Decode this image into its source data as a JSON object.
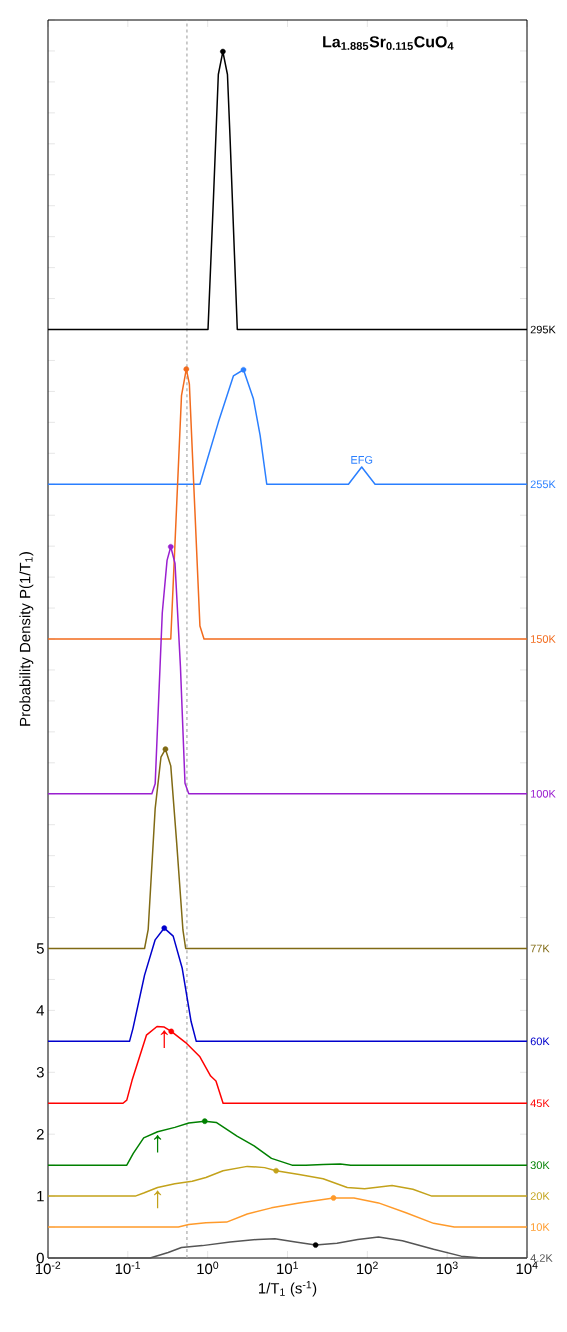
{
  "chart_data": {
    "type": "line",
    "title": "La$_{1.885}$Sr$_{0.115}$CuO$_{4}$",
    "xlabel": "1/T$_{1}$ (s$^{-1}$)",
    "ylabel": "Probability Density P(1/T$_{1}$)",
    "log": "x",
    "xlim": [
      0.01,
      10000
    ],
    "xticks": [
      {
        "value": 0.01,
        "label": "10$^{-2}$"
      },
      {
        "value": 0.1,
        "label": "10$^{-1}$"
      },
      {
        "value": 1,
        "label": "10$^{0}$"
      },
      {
        "value": 10,
        "label": "10$^{1}$"
      },
      {
        "value": 100,
        "label": "10$^{2}$"
      },
      {
        "value": 1000,
        "label": "10$^{3}$"
      },
      {
        "value": 10000,
        "label": "10$^{4}$"
      }
    ],
    "ylim": [
      0,
      20
    ],
    "yticks": [
      0,
      {
        "value": 0.5,
        "label": null
      },
      1,
      {
        "value": 1.5,
        "label": null
      },
      2,
      {
        "value": 2.5,
        "label": null
      },
      3,
      {
        "value": 3.5,
        "label": null
      },
      4,
      {
        "value": 4.5,
        "label": null
      },
      5,
      {
        "value": 5.5,
        "label": null
      },
      {
        "value": 6,
        "label": null
      },
      {
        "value": 6.5,
        "label": null
      },
      {
        "value": 7,
        "label": null
      },
      {
        "value": 7.5,
        "label": null
      },
      {
        "value": 8,
        "label": null
      },
      {
        "value": 8.5,
        "label": null
      },
      {
        "value": 9,
        "label": null
      },
      {
        "value": 9.5,
        "label": null
      },
      {
        "value": 10,
        "label": null
      },
      {
        "value": 10.5,
        "label": null
      },
      {
        "value": 11,
        "label": null
      },
      {
        "value": 11.5,
        "label": null
      },
      {
        "value": 12,
        "label": null
      },
      {
        "value": 12.5,
        "label": null
      },
      {
        "value": 13,
        "label": null
      },
      {
        "value": 13.5,
        "label": null
      },
      {
        "value": 14,
        "label": null
      },
      {
        "value": 14.5,
        "label": null
      },
      {
        "value": 15,
        "label": null
      },
      {
        "value": 15.5,
        "label": null
      },
      {
        "value": 16,
        "label": null
      },
      {
        "value": 16.5,
        "label": null
      },
      {
        "value": 17,
        "label": null
      },
      {
        "value": 17.5,
        "label": null
      },
      {
        "value": 18,
        "label": null
      },
      {
        "value": 18.5,
        "label": null
      },
      {
        "value": 19,
        "label": null
      },
      {
        "value": 19.5,
        "label": null
      },
      {
        "value": 20,
        "label": null
      }
    ],
    "ref_lines": [
      {
        "axis": "x",
        "value": 0.55,
        "color": "#aaaaaa",
        "line_style": "dashed"
      }
    ],
    "annotations": [
      {
        "text": "EFG",
        "x": 85,
        "y": 12.78
      },
      {
        "text": "↑",
        "x": 0.286,
        "y": 3.73
      },
      {
        "text": "↑",
        "x": 0.236,
        "y": 2.04
      },
      {
        "text": "↑",
        "x": 0.236,
        "y": 1.14
      }
    ],
    "series": [
      {
        "name": "295K",
        "color": "#000000",
        "x": [
          0.01,
          1.01,
          1.18,
          1.36,
          1.55,
          1.77,
          1.91,
          2.35,
          10000
        ],
        "values": [
          15,
          15,
          17.1,
          19.12,
          19.49,
          19.12,
          18.08,
          15,
          15
        ]
      },
      {
        "name": "255K",
        "color": "#2a7fff",
        "x": [
          0.01,
          0.8,
          1.36,
          2.1,
          2.81,
          3.74,
          4.54,
          5.5,
          58,
          85,
          125,
          10000
        ],
        "values": [
          12.5,
          12.5,
          13.5,
          14.25,
          14.35,
          13.88,
          13.29,
          12.5,
          12.5,
          12.78,
          12.5,
          12.5
        ]
      },
      {
        "name": "150K",
        "color": "#f26b1d",
        "x": [
          0.01,
          0.345,
          0.47,
          0.54,
          0.59,
          0.8,
          0.9,
          10000
        ],
        "values": [
          10,
          10,
          13.93,
          14.36,
          14.12,
          10.21,
          10,
          10
        ]
      },
      {
        "name": "100K",
        "color": "#9a1fd0",
        "x": [
          0.01,
          0.2,
          0.22,
          0.27,
          0.31,
          0.345,
          0.39,
          0.456,
          0.52,
          0.58,
          10000
        ],
        "values": [
          7.5,
          7.5,
          7.66,
          10.42,
          11.27,
          11.49,
          11.22,
          9.55,
          7.67,
          7.5,
          7.5
        ]
      },
      {
        "name": "77K",
        "color": "#806a14",
        "x": [
          0.01,
          0.162,
          0.18,
          0.22,
          0.26,
          0.296,
          0.345,
          0.41,
          0.49,
          0.53,
          10000
        ],
        "values": [
          5,
          5,
          5.31,
          7.26,
          8.09,
          8.22,
          7.95,
          6.69,
          5.3,
          5,
          5
        ]
      },
      {
        "name": "60K",
        "color": "#0000cc",
        "x": [
          0.01,
          0.105,
          0.116,
          0.162,
          0.22,
          0.286,
          0.37,
          0.48,
          0.62,
          0.72,
          10000
        ],
        "values": [
          3.5,
          3.5,
          3.71,
          4.57,
          5.14,
          5.33,
          5.2,
          4.68,
          3.82,
          3.5,
          3.5
        ]
      },
      {
        "name": "45K",
        "color": "#ff0000",
        "x": [
          0.01,
          0.087,
          0.097,
          0.113,
          0.171,
          0.232,
          0.286,
          0.35,
          0.53,
          0.8,
          1.09,
          1.27,
          1.56,
          10000
        ],
        "values": [
          2.5,
          2.5,
          2.55,
          2.87,
          3.6,
          3.74,
          3.73,
          3.66,
          3.48,
          3.25,
          2.94,
          2.86,
          2.5,
          2.5
        ]
      },
      {
        "name": "30K",
        "color": "#008000",
        "x": [
          0.01,
          0.097,
          0.117,
          0.158,
          0.236,
          0.388,
          0.58,
          0.92,
          1.28,
          2.33,
          3.82,
          6.3,
          11.4,
          17,
          27.9,
          45.7,
          62,
          10000
        ],
        "values": [
          1.5,
          1.5,
          1.69,
          1.94,
          2.04,
          2.11,
          2.18,
          2.21,
          2.19,
          1.97,
          1.81,
          1.61,
          1.5,
          1.5,
          1.51,
          1.52,
          1.5,
          1.5
        ]
      },
      {
        "name": "20K",
        "color": "#c3a21a",
        "x": [
          0.01,
          0.124,
          0.158,
          0.236,
          0.388,
          0.64,
          0.95,
          1.56,
          3.13,
          5.17,
          7.2,
          14,
          27.9,
          56,
          92.5,
          204,
          372,
          643,
          10000
        ],
        "values": [
          1,
          1,
          1.05,
          1.14,
          1.2,
          1.24,
          1.3,
          1.41,
          1.48,
          1.46,
          1.41,
          1.35,
          1.28,
          1.14,
          1.12,
          1.17,
          1.11,
          1,
          1
        ]
      },
      {
        "name": "10K",
        "color": "#ff9a2a",
        "x": [
          0.01,
          0.43,
          0.58,
          0.95,
          1.73,
          3.13,
          6.3,
          14,
          37.7,
          68,
          138,
          305,
          676,
          1228,
          10000
        ],
        "values": [
          0.5,
          0.5,
          0.54,
          0.57,
          0.58,
          0.71,
          0.81,
          0.89,
          0.97,
          0.97,
          0.89,
          0.73,
          0.56,
          0.5,
          0.5
        ]
      },
      {
        "name": "4.2K",
        "color": "#555555",
        "x": [
          0.01,
          0.19,
          0.32,
          0.47,
          0.86,
          1.91,
          4.24,
          6.95,
          12.6,
          22.5,
          41.7,
          76,
          138,
          275,
          676,
          1496,
          2723,
          10000
        ],
        "values": [
          0,
          0,
          0.09,
          0.17,
          0.2,
          0.26,
          0.3,
          0.31,
          0.26,
          0.21,
          0.24,
          0.3,
          0.34,
          0.28,
          0.14,
          0.03,
          0,
          0
        ]
      },
      {
        "type": "scatter",
        "x": [
          1.55,
          2.81,
          0.54,
          0.345,
          0.296,
          0.286,
          0.35,
          0.92,
          7.2,
          37.7,
          22.5
        ],
        "values": [
          19.49,
          14.35,
          14.36,
          11.49,
          8.22,
          5.33,
          3.66,
          2.21,
          1.41,
          0.97,
          0.21
        ],
        "colors": [
          "#000000",
          "#2a7fff",
          "#f26b1d",
          "#9a1fd0",
          "#806a14",
          "#0000cc",
          "#ff0000",
          "#008000",
          "#c3a21a",
          "#ff9a2a",
          "#000000"
        ]
      }
    ]
  }
}
